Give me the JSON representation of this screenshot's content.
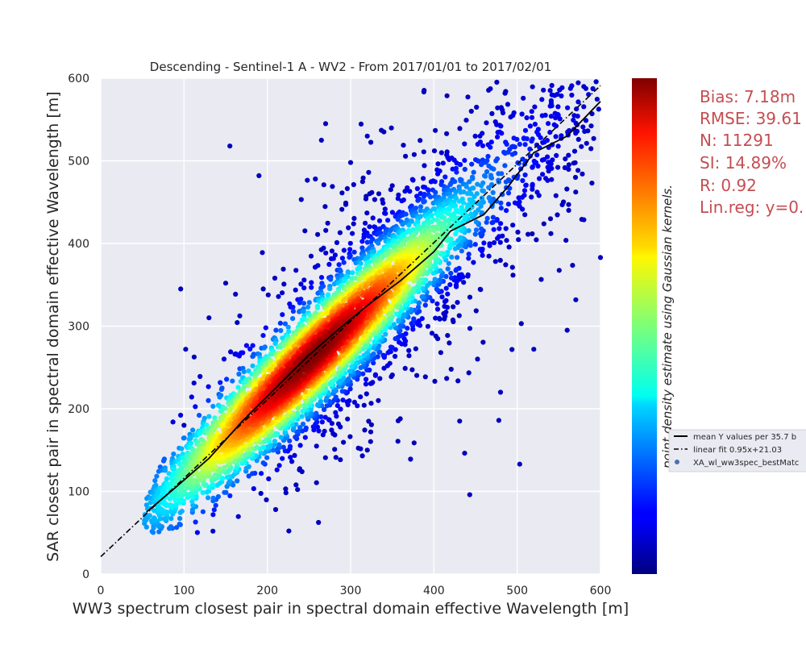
{
  "chart_data": {
    "type": "scatter",
    "title": "Descending - Sentinel-1 A - WV2 - From 2017/01/01 to 2017/02/01",
    "xlabel": "WW3 spectrum closest pair in spectral domain effective Wavelength [m]",
    "ylabel": "SAR closest pair in spectral domain effective Wavelength [m]",
    "xlim": [
      0,
      600
    ],
    "ylim": [
      0,
      600
    ],
    "xticks": [
      "0",
      "100",
      "200",
      "300",
      "400",
      "500",
      "600"
    ],
    "yticks": [
      "0",
      "100",
      "200",
      "300",
      "400",
      "500",
      "600"
    ],
    "grid": true,
    "colormap": "jet",
    "colorbar_label": "point density estimate using Gaussian kernels.",
    "legend_position": "right, outside plot",
    "legend": [
      "mean Y values per 35.7 b",
      "linear fit 0.95x+21.03",
      "XA_wl_ww3spec_bestMatc"
    ],
    "stats": [
      "Bias: 7.18m",
      "RMSE: 39.61",
      "N: 11291",
      "SI: 14.89%",
      "R: 0.92",
      "Lin.reg: y=0."
    ],
    "linear_fit": {
      "slope": 0.95,
      "intercept": 21.03
    },
    "mean_line": {
      "x": [
        55,
        90,
        130,
        170,
        210,
        250,
        290,
        320,
        360,
        400,
        420,
        460,
        490,
        520,
        560,
        600
      ],
      "y": [
        75,
        105,
        140,
        185,
        225,
        265,
        300,
        325,
        355,
        390,
        415,
        435,
        470,
        510,
        530,
        572
      ]
    },
    "outliers": {
      "x": [
        155,
        190,
        96,
        102,
        443,
        503,
        372,
        210,
        222,
        215,
        478,
        320,
        265,
        300,
        600,
        445,
        580,
        570,
        560,
        480,
        100,
        150,
        130,
        340,
        320,
        270,
        505,
        520,
        540,
        350
      ],
      "y": [
        518,
        482,
        345,
        272,
        96,
        133,
        139,
        78,
        103,
        238,
        186,
        150,
        525,
        498,
        383,
        560,
        590,
        480,
        295,
        220,
        180,
        352,
        310,
        535,
        530,
        545,
        303,
        272,
        430,
        470
      ]
    },
    "seed": 12345
  }
}
